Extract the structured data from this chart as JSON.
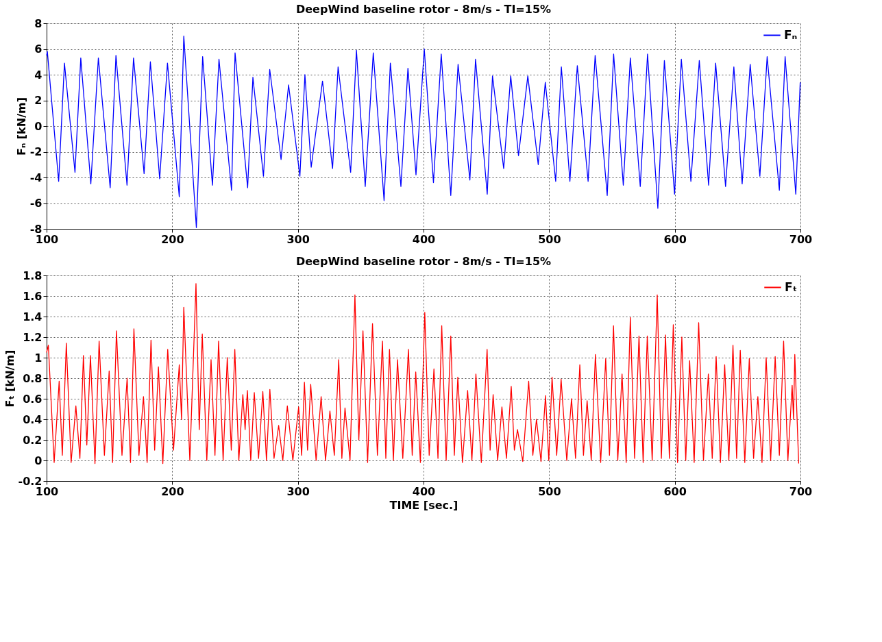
{
  "chart_data": [
    {
      "type": "line",
      "title": "DeepWind baseline rotor - 8m/s - TI=15%",
      "ylabel": "Fₙ [kN/m]",
      "xlim": [
        100,
        700
      ],
      "xticks": [
        100,
        200,
        300,
        400,
        500,
        600,
        700
      ],
      "ylim": [
        -8,
        8
      ],
      "yticks": [
        -8,
        -6,
        -4,
        -2,
        0,
        2,
        4,
        6,
        8
      ],
      "grid": true,
      "legend": "top right",
      "line_style": "solid",
      "x": [
        100,
        100.6,
        109.6,
        114.2,
        122.6,
        127.2,
        135.2,
        141.2,
        150.6,
        155.2,
        164,
        169.2,
        177.6,
        182.6,
        190,
        196.2,
        205.6,
        209.2,
        219.2,
        224.2,
        232,
        237.2,
        247.2,
        250,
        260,
        264.2,
        272.6,
        277.6,
        286.6,
        292.6,
        301.6,
        305.6,
        310.6,
        319.6,
        327.6,
        332,
        342,
        346.6,
        353.6,
        360,
        368.6,
        373.6,
        382,
        387.6,
        394,
        400.6,
        407.9,
        414.1,
        421.7,
        427.5,
        436.9,
        441.4,
        450.7,
        454.9,
        463.8,
        469.4,
        475.6,
        483,
        491.3,
        496.9,
        505.2,
        509.7,
        516.5,
        522.4,
        531,
        536.6,
        546.2,
        551.3,
        559,
        564.6,
        572.5,
        578.3,
        586.5,
        591.7,
        599.8,
        605.2,
        612.8,
        619.5,
        626.9,
        632.5,
        640.4,
        647,
        653.6,
        660,
        667.7,
        673.5,
        683.2,
        687.8,
        696.3,
        699.8
      ],
      "series": [
        {
          "name": "Fₙ",
          "color": "#0000ff",
          "values": [
            5.5,
            5.8,
            -4.3,
            4.9,
            -3.6,
            5.3,
            -4.5,
            5.3,
            -4.8,
            5.5,
            -4.6,
            5.3,
            -3.7,
            5.0,
            -4.1,
            4.9,
            -5.5,
            7.0,
            -7.9,
            5.4,
            -4.6,
            5.2,
            -5.0,
            5.7,
            -4.8,
            3.8,
            -3.9,
            4.4,
            -2.6,
            3.2,
            -3.9,
            4.0,
            -3.2,
            3.5,
            -3.3,
            4.6,
            -3.6,
            5.9,
            -4.7,
            5.7,
            -5.8,
            4.9,
            -4.7,
            4.5,
            -3.8,
            6.0,
            -4.4,
            5.6,
            -5.4,
            4.8,
            -4.2,
            5.2,
            -5.3,
            3.9,
            -3.3,
            3.9,
            -2.3,
            3.9,
            -3.0,
            3.4,
            -4.3,
            4.6,
            -4.3,
            4.7,
            -4.3,
            5.5,
            -5.4,
            5.6,
            -4.6,
            5.3,
            -4.7,
            5.6,
            -6.4,
            5.1,
            -5.3,
            5.2,
            -4.3,
            5.1,
            -4.6,
            4.9,
            -4.7,
            4.6,
            -4.5,
            4.8,
            -3.9,
            5.4,
            -5.0,
            5.4,
            -5.3,
            3.4
          ]
        }
      ]
    },
    {
      "type": "line",
      "title": "DeepWind baseline rotor - 8m/s - TI=15%",
      "ylabel": "Fₜ [kN/m]",
      "xlabel": "TIME [sec.]",
      "xlim": [
        100,
        700
      ],
      "xticks": [
        100,
        200,
        300,
        400,
        500,
        600,
        700
      ],
      "ylim": [
        -0.2,
        1.8
      ],
      "yticks": [
        -0.2,
        {
          "value": 0,
          "label": "0"
        },
        0.2,
        0.4,
        0.6,
        0.8,
        {
          "value": 1,
          "label": "1"
        },
        1.2,
        1.4,
        1.6,
        1.8
      ],
      "grid": true,
      "legend": "top right",
      "line_style": "solid",
      "x": [
        100,
        101.4,
        106,
        110,
        112.5,
        115.7,
        119.5,
        123.3,
        126.5,
        129.3,
        132,
        134.9,
        138.5,
        141.8,
        146,
        149.8,
        152.5,
        155.6,
        160,
        164.1,
        166.8,
        169.5,
        173.5,
        177.1,
        180,
        183.1,
        186,
        189,
        192.5,
        196.4,
        201,
        205.6,
        207.4,
        209.2,
        214,
        218.9,
        221.5,
        223.9,
        227.5,
        230.9,
        234,
        236.9,
        240.5,
        243.8,
        247,
        249.8,
        253,
        256.2,
        258,
        259.8,
        262.5,
        265.3,
        268.7,
        272.1,
        275,
        277.7,
        281,
        284.7,
        288,
        291.6,
        296,
        300.6,
        303,
        305.2,
        307.7,
        310.2,
        314.5,
        318.5,
        322,
        325.5,
        329,
        332.5,
        335,
        337.5,
        341.5,
        345.4,
        348.5,
        351.8,
        355.5,
        359.4,
        363.3,
        367.3,
        370,
        372.9,
        376,
        379.3,
        383.5,
        388,
        391,
        393.8,
        397.5,
        401,
        404.5,
        408.3,
        411.5,
        414.5,
        418,
        421.7,
        424.5,
        427.3,
        431,
        435.1,
        438.5,
        441.7,
        446,
        450.6,
        453,
        455.4,
        459,
        462.4,
        466,
        469.8,
        472.3,
        474.8,
        479,
        483.7,
        487,
        489.9,
        493.5,
        497.1,
        499.7,
        502.3,
        506,
        509.5,
        514,
        517.8,
        521,
        524.4,
        527.3,
        530.2,
        533.5,
        536.8,
        541,
        545,
        548,
        551.2,
        554.6,
        558,
        561.3,
        564.6,
        568,
        571.5,
        574.8,
        578.1,
        582,
        586,
        589.3,
        592.6,
        595.7,
        598.8,
        602.2,
        605.6,
        608.7,
        611.8,
        615.4,
        619,
        622.8,
        626.7,
        629.8,
        632.9,
        636.3,
        639.7,
        643,
        646.3,
        649.2,
        652.1,
        655.7,
        659.3,
        662.7,
        666.1,
        669.4,
        672.7,
        676.3,
        679.9,
        683.2,
        686.6,
        690,
        693.4,
        694.5,
        695.5,
        698.6
      ],
      "series": [
        {
          "name": "Fₜ",
          "color": "#ff0000",
          "values": [
            1.05,
            1.12,
            -0.02,
            0.77,
            0.05,
            1.14,
            -0.02,
            0.53,
            0.02,
            1.02,
            0.15,
            1.02,
            -0.03,
            1.16,
            0.05,
            0.87,
            -0.02,
            1.26,
            0.05,
            0.8,
            -0.02,
            1.28,
            0.05,
            0.62,
            -0.02,
            1.17,
            0.1,
            0.91,
            -0.03,
            1.08,
            0.1,
            0.93,
            0.4,
            1.49,
            0.0,
            1.72,
            0.3,
            1.23,
            0.0,
            0.98,
            0.05,
            1.16,
            0.0,
            1.0,
            0.1,
            1.08,
            0.0,
            0.64,
            0.3,
            0.68,
            0.0,
            0.66,
            0.02,
            0.67,
            0.0,
            0.69,
            0.02,
            0.34,
            0.0,
            0.53,
            0.0,
            0.52,
            0.05,
            0.76,
            0.1,
            0.74,
            0.0,
            0.62,
            0.0,
            0.48,
            0.05,
            0.98,
            0.02,
            0.51,
            0.0,
            1.61,
            0.2,
            1.26,
            -0.02,
            1.33,
            0.05,
            1.16,
            0.02,
            1.08,
            0.0,
            0.98,
            0.02,
            1.08,
            0.05,
            0.86,
            -0.02,
            1.44,
            0.05,
            0.89,
            0.02,
            1.31,
            0.0,
            1.21,
            0.05,
            0.81,
            -0.02,
            0.68,
            0.0,
            0.84,
            -0.02,
            1.08,
            0.1,
            0.64,
            0.0,
            0.52,
            0.02,
            0.72,
            0.1,
            0.3,
            -0.01,
            0.77,
            0.05,
            0.4,
            -0.01,
            0.63,
            0.0,
            0.81,
            0.05,
            0.79,
            0.0,
            0.6,
            0.02,
            0.93,
            0.05,
            0.58,
            0.0,
            1.03,
            -0.02,
            0.99,
            0.05,
            1.31,
            0.0,
            0.84,
            -0.02,
            1.39,
            0.02,
            1.21,
            -0.02,
            1.21,
            0.0,
            1.61,
            0.02,
            1.22,
            0.02,
            1.32,
            -0.02,
            1.2,
            0.0,
            0.97,
            -0.02,
            1.34,
            0.0,
            0.84,
            0.02,
            1.01,
            -0.02,
            0.93,
            0.0,
            1.12,
            0.02,
            1.07,
            -0.02,
            0.99,
            0.02,
            0.62,
            -0.02,
            1.0,
            0.0,
            1.01,
            0.05,
            1.16,
            0.0,
            0.73,
            0.4,
            1.03,
            -0.03
          ]
        }
      ]
    }
  ]
}
